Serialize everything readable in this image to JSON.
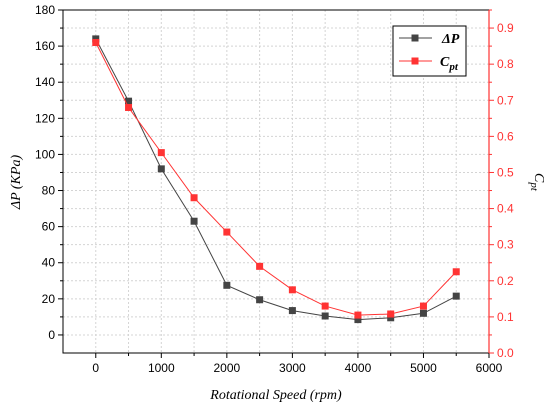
{
  "chart_data": {
    "type": "line",
    "xlabel": "Rotational Speed (rpm)",
    "ylabel_left": "ΔP (KPa)",
    "ylabel_right": "C",
    "ylabel_right_sub": "pt",
    "xlim": [
      -500,
      6000
    ],
    "xticks": [
      0,
      1000,
      2000,
      3000,
      4000,
      5000,
      6000
    ],
    "ylim_left": [
      -10,
      180
    ],
    "yticks_left": [
      0,
      20,
      40,
      60,
      80,
      100,
      120,
      140,
      160,
      180
    ],
    "ylim_right": [
      0,
      0.95
    ],
    "yticks_right": [
      0.0,
      0.1,
      0.2,
      0.3,
      0.4,
      0.5,
      0.6,
      0.7,
      0.8,
      0.9
    ],
    "grid": true,
    "legend_position": "top-right",
    "x": [
      0,
      500,
      1000,
      1500,
      2000,
      2500,
      3000,
      3500,
      4000,
      4500,
      5000,
      5500
    ],
    "series": [
      {
        "name": "ΔP",
        "axis": "left",
        "color": "#444444",
        "values": [
          164,
          129.5,
          92,
          63,
          27.5,
          19.5,
          13.5,
          10.5,
          8.5,
          9.5,
          12,
          21.5
        ]
      },
      {
        "name": "C",
        "name_sub": "pt",
        "axis": "right",
        "color": "#ff3333",
        "values": [
          0.86,
          0.68,
          0.555,
          0.43,
          0.335,
          0.24,
          0.175,
          0.13,
          0.105,
          0.108,
          0.13,
          0.225
        ]
      }
    ]
  }
}
